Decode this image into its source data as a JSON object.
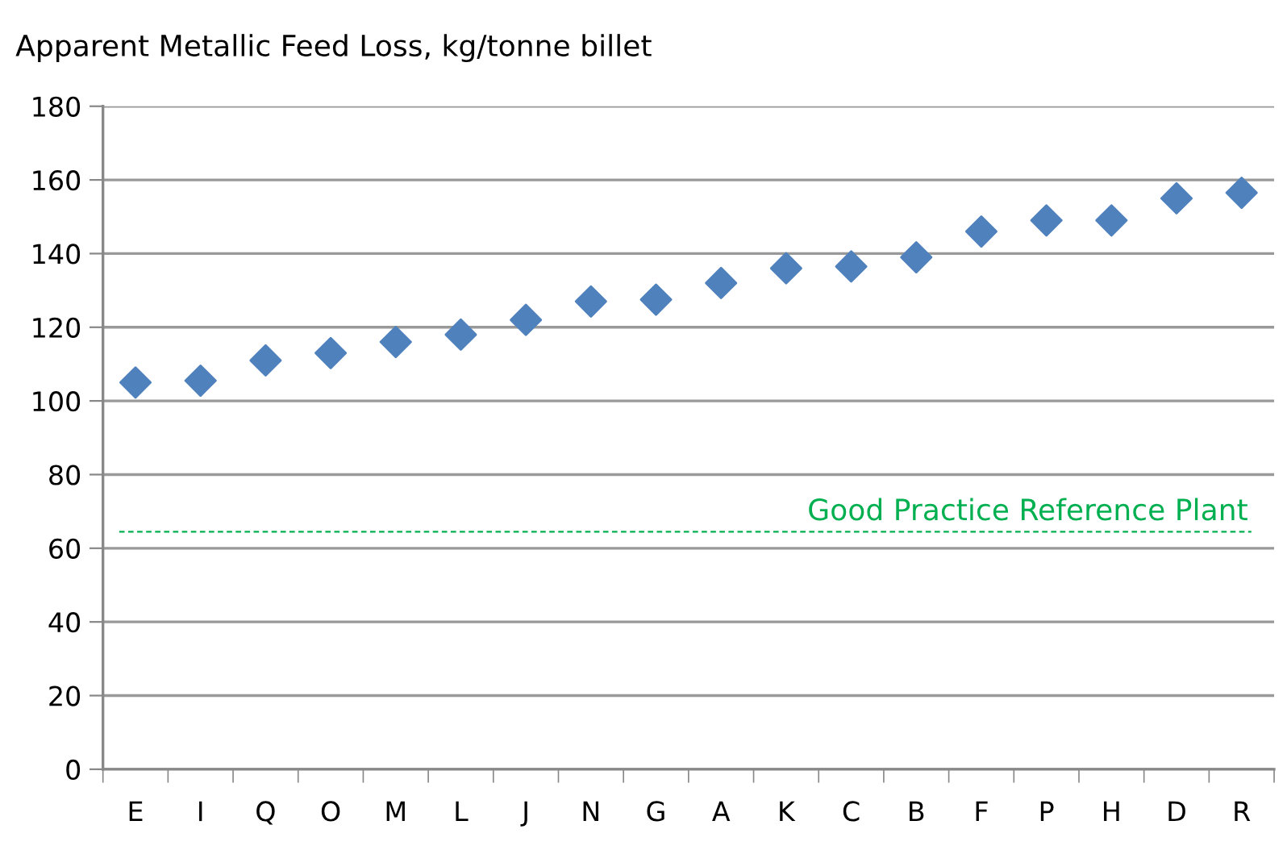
{
  "chart_data": {
    "type": "scatter",
    "title": "Apparent Metallic Feed Loss, kg/tonne billet",
    "categories": [
      "E",
      "I",
      "Q",
      "O",
      "M",
      "L",
      "J",
      "N",
      "G",
      "A",
      "K",
      "C",
      "B",
      "F",
      "P",
      "H",
      "D",
      "R"
    ],
    "series": [
      {
        "color": "#4f81bd",
        "values": [
          105,
          105.5,
          111,
          113,
          116,
          118,
          122,
          127,
          127.5,
          132,
          136,
          136.5,
          139,
          146,
          149,
          149,
          155,
          156.5
        ]
      }
    ],
    "marker": "diamond",
    "ylim": [
      0,
      180
    ],
    "yticks": [
      0,
      20,
      40,
      60,
      80,
      100,
      120,
      140,
      160,
      180
    ],
    "grid": "y",
    "ref_lines": [
      {
        "axis": "y",
        "value": 64.5,
        "label": "Good Practice Reference Plant",
        "color": "#00b050",
        "line_style": "dashed"
      }
    ]
  }
}
